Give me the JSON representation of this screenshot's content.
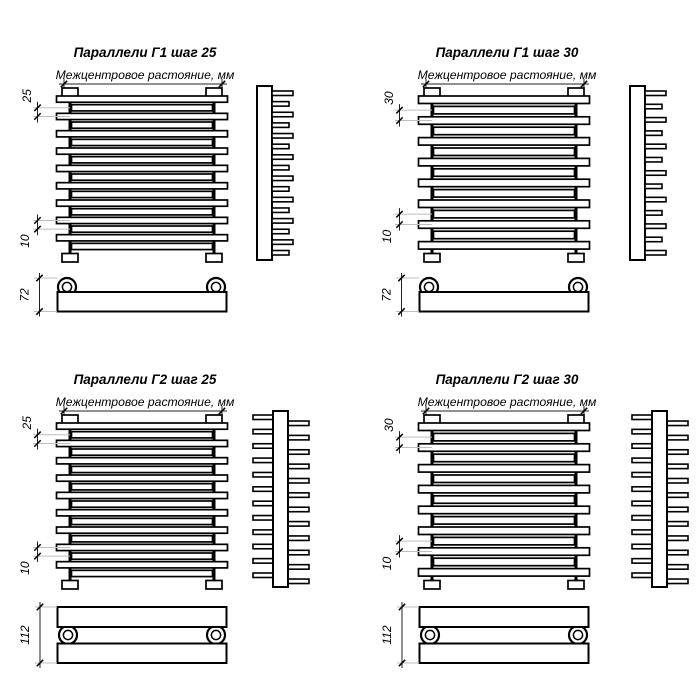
{
  "document": {
    "type": "technical-drawing",
    "background": "#ffffff",
    "line_color": "#000000",
    "dim_line_color": "#222222",
    "ext_line_color": "#bdbdbd"
  },
  "panels": [
    {
      "id": "g1-step-25",
      "title": "Параллели Г1 шаг 25",
      "subtitle": "Межцентровое растояние, мм",
      "step_dim": "25",
      "gap_dim": "10",
      "depth_dim": "72",
      "variant": "single",
      "tube_count": 18,
      "teeth_count": 16
    },
    {
      "id": "g1-step-30",
      "title": "Параллели Г1 шаг 30",
      "subtitle": "Межцентровое растояние, мм",
      "step_dim": "30",
      "gap_dim": "10",
      "depth_dim": "72",
      "variant": "single",
      "tube_count": 15,
      "teeth_count": 13
    },
    {
      "id": "g2-step-25",
      "title": "Параллели Г2 шаг 25",
      "subtitle": "Межцентровое растояние, мм",
      "step_dim": "25",
      "gap_dim": "10",
      "depth_dim": "112",
      "variant": "double",
      "tube_count": 18,
      "teeth_count": 12
    },
    {
      "id": "g2-step-30",
      "title": "Параллели Г2 шаг 30",
      "subtitle": "Межцентровое растояние, мм",
      "step_dim": "30",
      "gap_dim": "10",
      "depth_dim": "112",
      "variant": "double",
      "tube_count": 15,
      "teeth_count": 12
    }
  ]
}
